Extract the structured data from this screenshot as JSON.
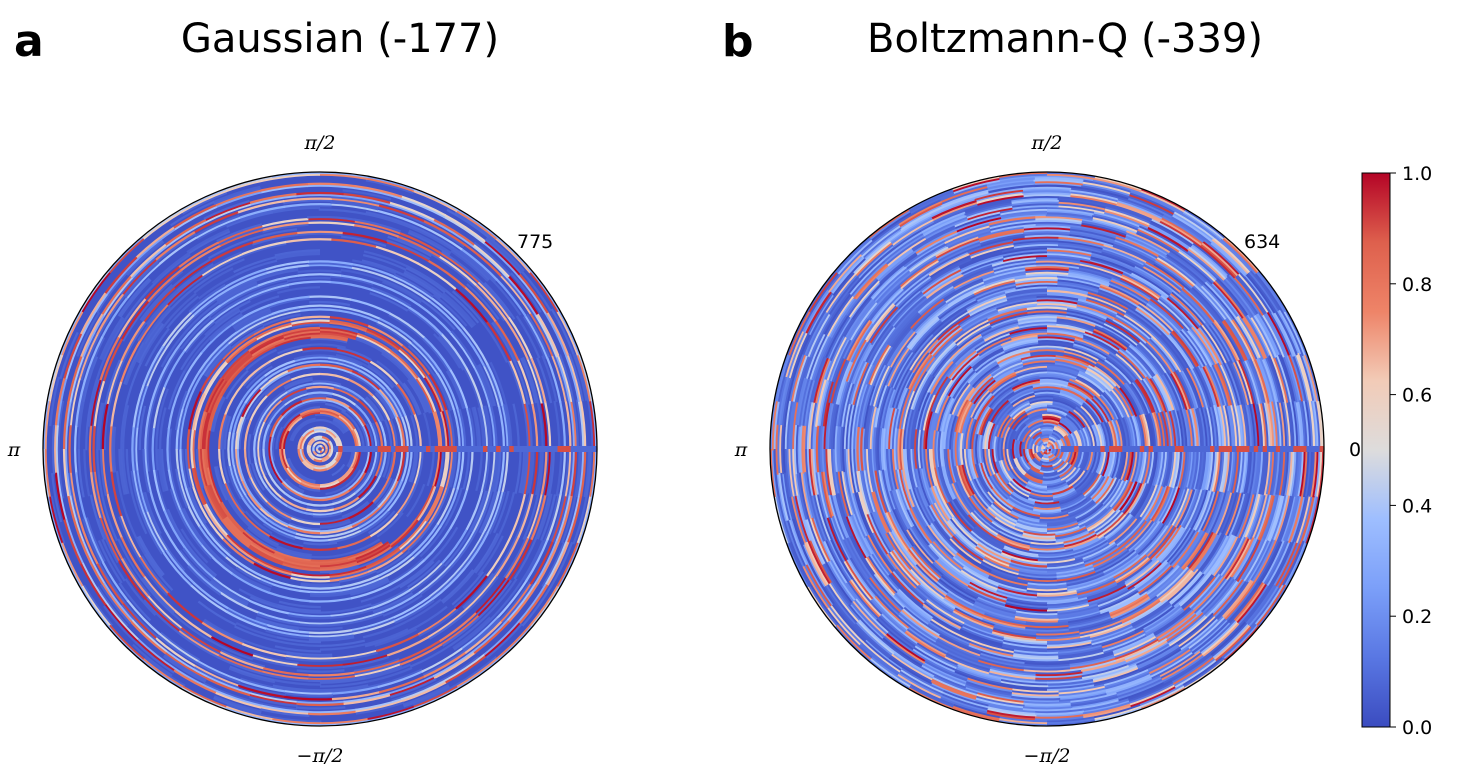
{
  "chart_data": [
    {
      "type": "heatmap",
      "projection": "polar",
      "panel_label": "a",
      "title": "Gaussian (-177)",
      "angle_tick_labels": {
        "top": "π/2",
        "left": "π",
        "bottom": "−π/2",
        "right": ""
      },
      "radial_tick_label": "775",
      "rmax": 775,
      "colormap": "coolwarm",
      "value_range": [
        0,
        1
      ],
      "grid": false,
      "description_features": {
        "background_level": 0.02,
        "hot_ring": {
          "r_frac": 0.42,
          "angle_start_deg": 80,
          "angle_end_deg": 300,
          "value": 0.95
        },
        "seam_at_angle_deg": 0
      }
    },
    {
      "type": "heatmap",
      "projection": "polar",
      "panel_label": "b",
      "title": "Boltzmann-Q (-339)",
      "angle_tick_labels": {
        "top": "π/2",
        "left": "π",
        "bottom": "−π/2",
        "right": "0"
      },
      "radial_tick_label": "634",
      "rmax": 634,
      "colormap": "coolwarm",
      "value_range": [
        0,
        1
      ],
      "grid": false,
      "description_features": {
        "background_level": 0.25,
        "seam_at_angle_deg": 0
      }
    }
  ],
  "colorbar": {
    "colormap": "coolwarm",
    "ticks": [
      "0.0",
      "0.2",
      "0.4",
      "0.6",
      "0.8",
      "1.0"
    ],
    "range": [
      0,
      1
    ]
  }
}
